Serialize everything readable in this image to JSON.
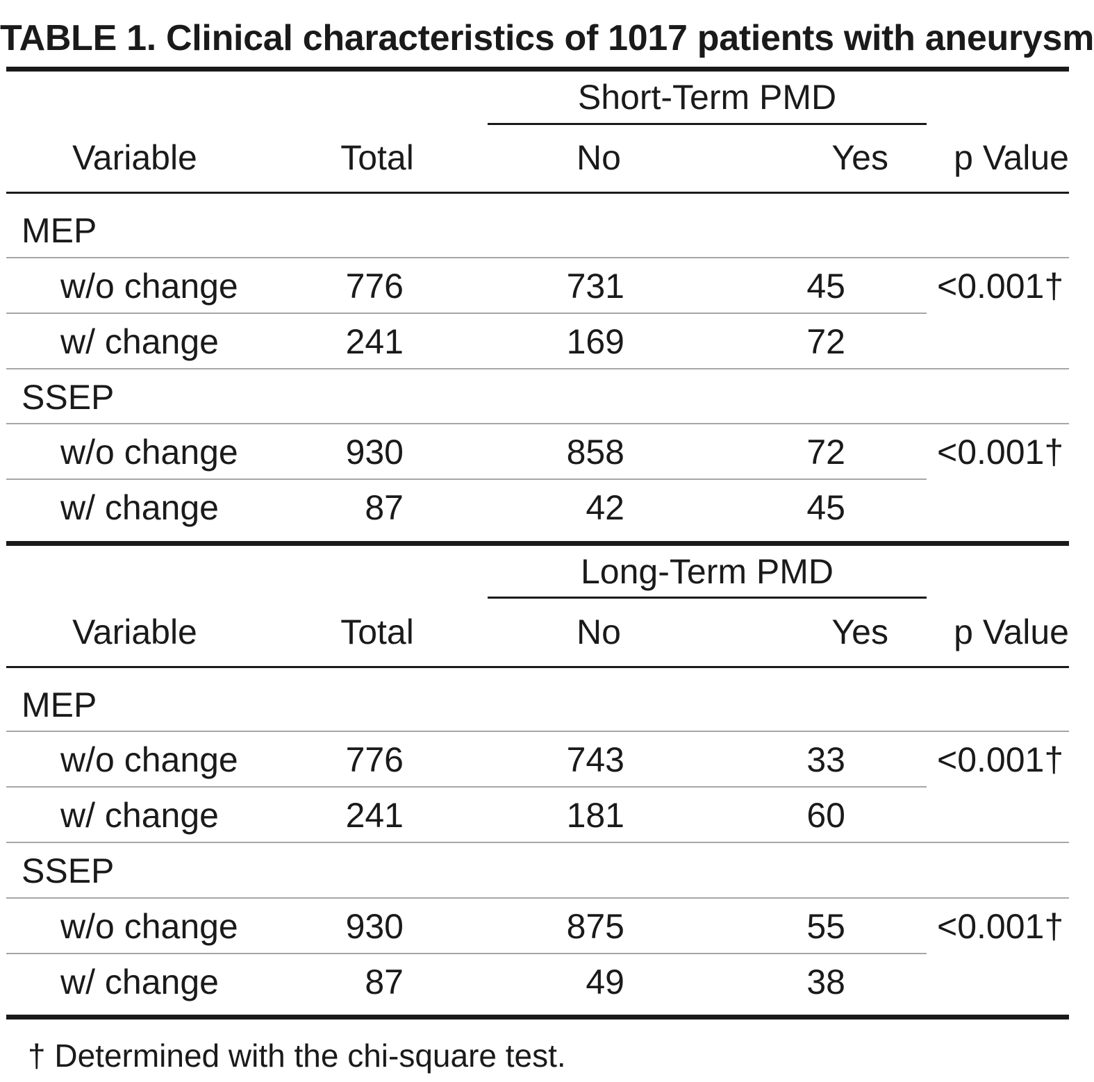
{
  "title": "TABLE 1. Clinical characteristics of 1017 patients with aneurysm",
  "headers": {
    "variable": "Variable",
    "total": "Total",
    "no": "No",
    "yes": "Yes",
    "p_value": "p Value"
  },
  "sections": [
    {
      "spanner": "Short-Term PMD",
      "groups": [
        {
          "name": "MEP",
          "p_value": "<0.001†",
          "rows": [
            {
              "label": "w/o change",
              "total": "776",
              "no": "731",
              "yes": "45"
            },
            {
              "label": "w/ change",
              "total": "241",
              "no": "169",
              "yes": "72"
            }
          ]
        },
        {
          "name": "SSEP",
          "p_value": "<0.001†",
          "rows": [
            {
              "label": "w/o change",
              "total": "930",
              "no": "858",
              "yes": "72"
            },
            {
              "label": "w/ change",
              "total": "87",
              "no": "42",
              "yes": "45"
            }
          ]
        }
      ]
    },
    {
      "spanner": "Long-Term PMD",
      "groups": [
        {
          "name": "MEP",
          "p_value": "<0.001†",
          "rows": [
            {
              "label": "w/o change",
              "total": "776",
              "no": "743",
              "yes": "33"
            },
            {
              "label": "w/ change",
              "total": "241",
              "no": "181",
              "yes": "60"
            }
          ]
        },
        {
          "name": "SSEP",
          "p_value": "<0.001†",
          "rows": [
            {
              "label": "w/o change",
              "total": "930",
              "no": "875",
              "yes": "55"
            },
            {
              "label": "w/ change",
              "total": "87",
              "no": "49",
              "yes": "38"
            }
          ]
        }
      ]
    }
  ],
  "footnote": "† Determined with the chi-square test."
}
